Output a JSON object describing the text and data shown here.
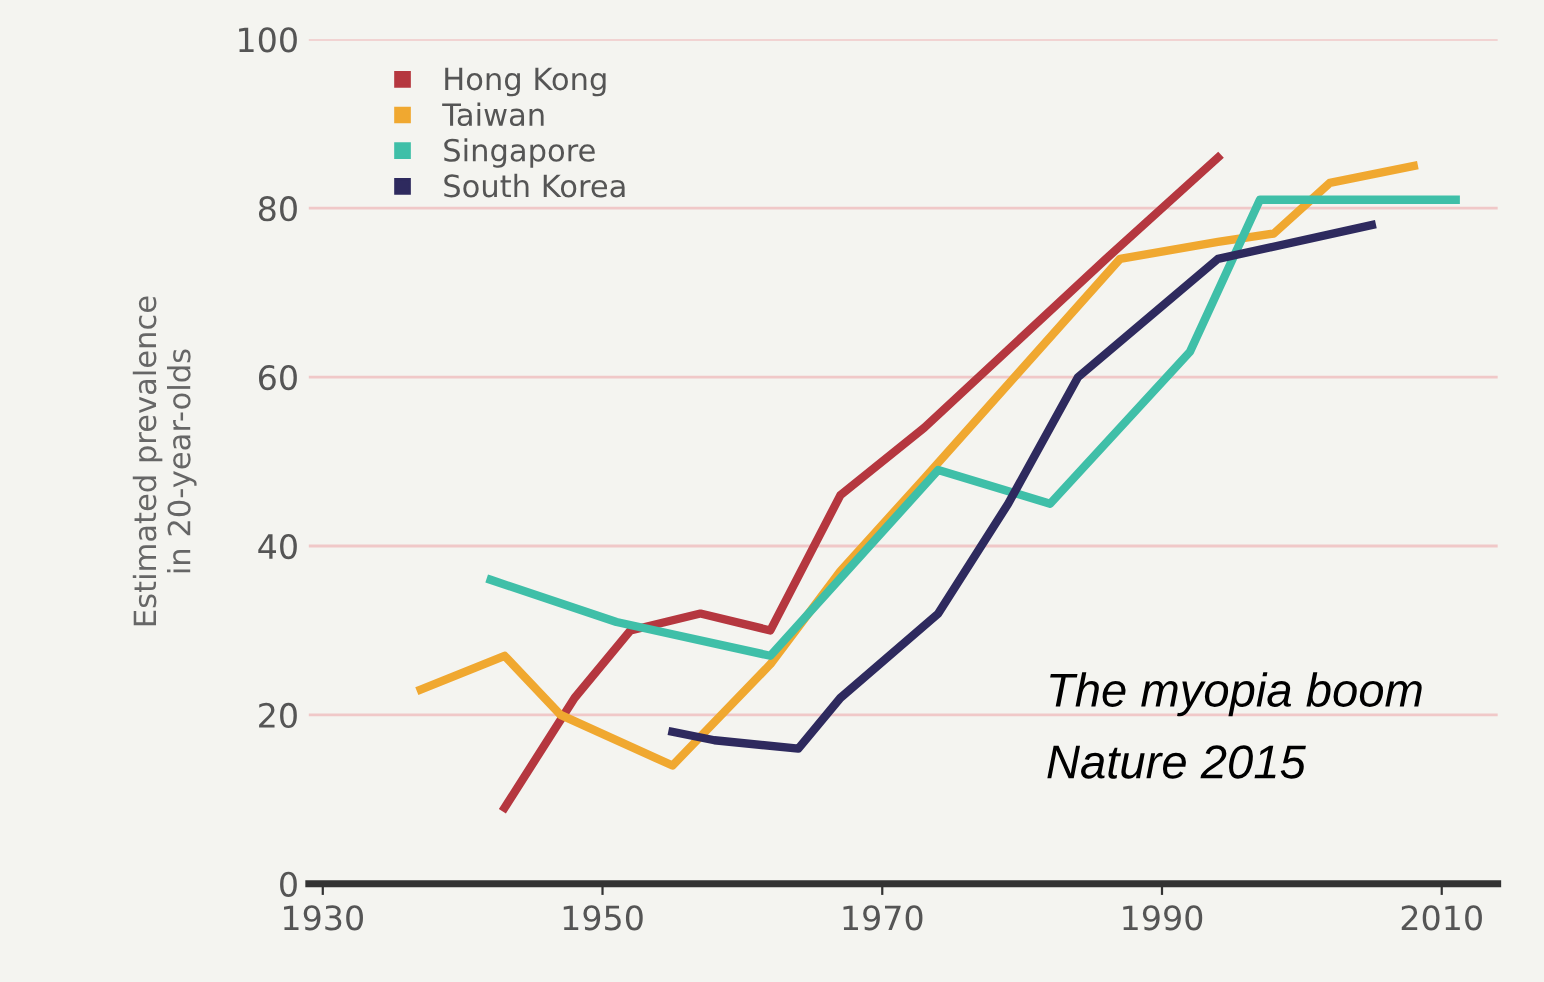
{
  "chart_data": {
    "type": "line",
    "ylabel": "Estimated prevalence\nin 20-year-olds",
    "xlim": [
      1929,
      2014
    ],
    "xticks": [
      1930,
      1950,
      1970,
      1990,
      2010
    ],
    "ylim": [
      0,
      100
    ],
    "yticks": [
      0,
      20,
      40,
      60,
      80,
      100
    ],
    "grid": "y",
    "legend": "top left",
    "marker": "none",
    "line_style": "solid",
    "series": [
      {
        "name": "Hong Kong",
        "color": "#b5373f",
        "x": [
          1943,
          1948,
          1952,
          1957,
          1962,
          1967,
          1973,
          1986,
          1994
        ],
        "values": [
          9,
          22,
          30,
          32,
          30,
          46,
          54,
          74,
          86
        ]
      },
      {
        "name": "Taiwan",
        "color": "#f0a830",
        "x": [
          1937,
          1943,
          1947,
          1955,
          1962,
          1967,
          1973,
          1987,
          1994,
          1998,
          2002,
          2008
        ],
        "values": [
          23,
          27,
          20,
          14,
          26,
          37,
          48,
          74,
          76,
          77,
          83,
          85
        ]
      },
      {
        "name": "Singapore",
        "color": "#3fbfa8",
        "x": [
          1942,
          1951,
          1962,
          1974,
          1982,
          1992,
          1997,
          2011
        ],
        "values": [
          36,
          31,
          27,
          49,
          45,
          63,
          81,
          81
        ]
      },
      {
        "name": "South Korea",
        "color": "#2e2a5e",
        "x": [
          1955,
          1958,
          1964,
          1967,
          1974,
          1979,
          1984,
          1994,
          2005
        ],
        "values": [
          18,
          17,
          16,
          22,
          32,
          45,
          60,
          74,
          78
        ]
      }
    ],
    "annotations": [
      "The myopia boom",
      "Nature 2015"
    ]
  }
}
